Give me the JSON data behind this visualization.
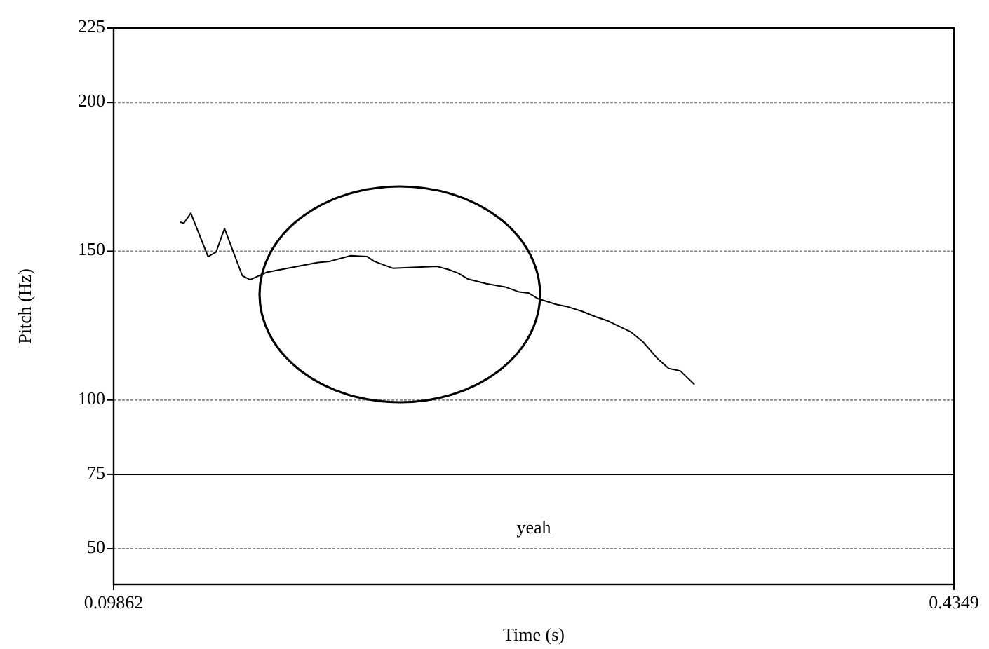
{
  "chart_data": {
    "type": "line",
    "xlabel": "Time (s)",
    "ylabel": "Pitch (Hz)",
    "xlim": [
      0.09862,
      0.4349
    ],
    "xticks": [
      0.09862,
      0.4349
    ],
    "ylim": [
      38,
      225
    ],
    "yticks": [
      50,
      75,
      100,
      150,
      200,
      225
    ],
    "grid": "y",
    "line_style": "solid",
    "ref_lines": [
      {
        "axis": "y",
        "value": 75,
        "color": "#000000",
        "line_style": "solid"
      }
    ],
    "annotations": [
      "yeah"
    ],
    "series": [
      {
        "color": "#000000",
        "x": [
          0.1252,
          0.1267,
          0.1295,
          0.1364,
          0.1396,
          0.143,
          0.1501,
          0.1532,
          0.1598,
          0.1804,
          0.1851,
          0.1935,
          0.2001,
          0.2029,
          0.2103,
          0.2281,
          0.2328,
          0.2366,
          0.2403,
          0.2478,
          0.2553,
          0.2609,
          0.2646,
          0.2683,
          0.2759,
          0.2805,
          0.2861,
          0.2917,
          0.2964,
          0.3058,
          0.3104,
          0.3161,
          0.3208,
          0.3254,
          0.3311
        ],
        "values": [
          159.8,
          159.4,
          162.8,
          148.2,
          149.7,
          157.6,
          141.8,
          140.4,
          142.9,
          146.2,
          146.6,
          148.5,
          148.2,
          146.6,
          144.3,
          144.9,
          143.8,
          142.6,
          140.7,
          139.1,
          138,
          136.3,
          136,
          134.1,
          132.1,
          131.3,
          129.8,
          127.9,
          126.6,
          122.8,
          119.6,
          114.1,
          110.6,
          109.8,
          105.2
        ]
      }
    ]
  }
}
